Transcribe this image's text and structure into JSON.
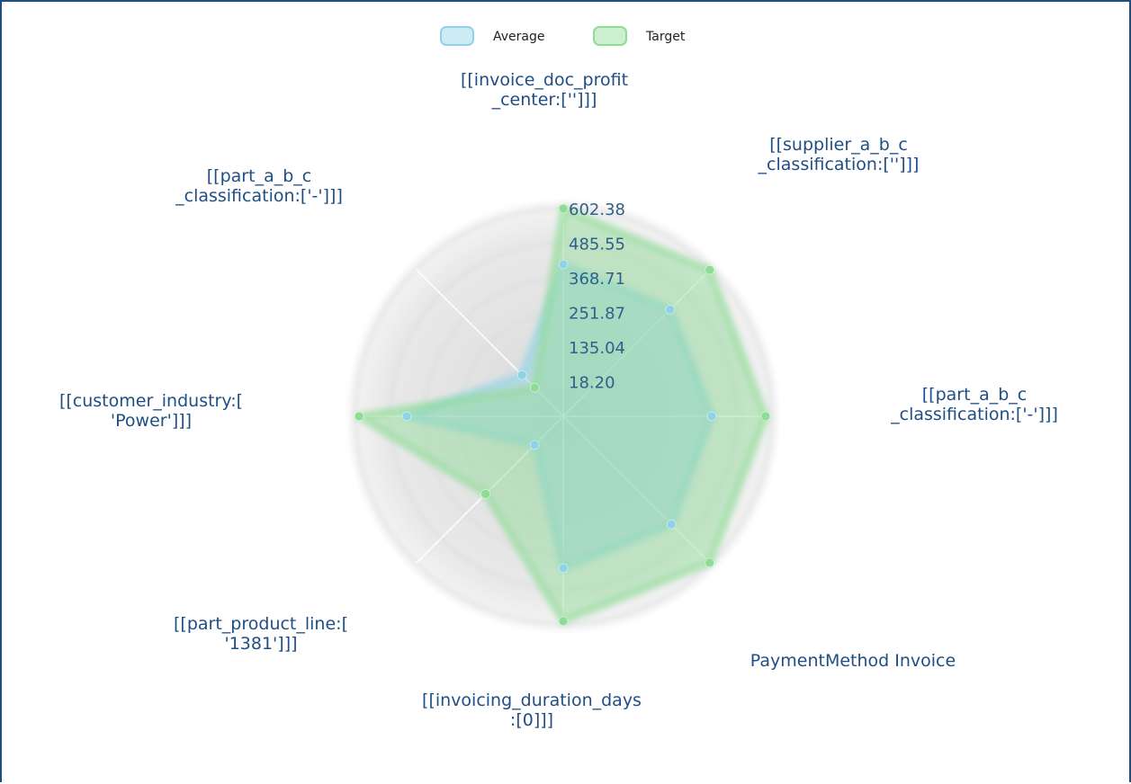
{
  "chart_data": {
    "type": "radar",
    "categories": [
      "[[invoice_doc_profit\n_center:['']]]",
      "[[supplier_a_b_c\n_classification:['']]]",
      "[[part_a_b_c\n_classification:['-']]]",
      "PaymentMethod Invoice",
      "[[invoicing_duration_days\n:[0]]]",
      "[[part_product_line:[\n'1381']]]",
      "[[customer_industry:[\n'Power']]]",
      "[[part_a_b_c\n_classification:['-']]]"
    ],
    "series": [
      {
        "name": "Average",
        "color": "#8fd3e8",
        "values": [
          414,
          411,
          402,
          417,
          414,
          38,
          429,
          98
        ]
      },
      {
        "name": "Target",
        "color": "#8fdc96",
        "values": [
          602.38,
          600,
          584,
          600,
          593,
          272,
          590,
          38
        ]
      }
    ],
    "ylim": [
      -98.64,
      602.38
    ],
    "yticks": [
      {
        "value": 18.2,
        "label": "18.20"
      },
      135.04,
      251.87,
      368.71,
      485.55,
      602.38
    ],
    "legend": "top"
  }
}
